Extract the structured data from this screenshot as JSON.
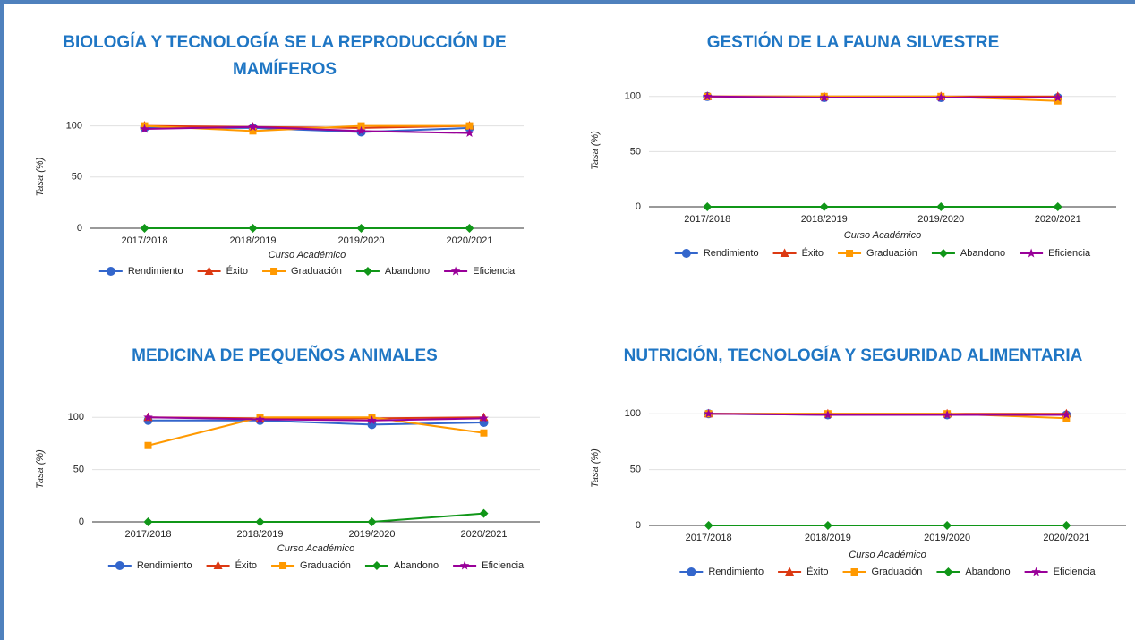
{
  "chart_data": [
    {
      "type": "line",
      "title": "BIOLOGÍA Y TECNOLOGÍA SE LA REPRODUCCIÓN DE MAMÍFEROS",
      "x_label": "Curso Académico",
      "y_label": "Tasa (%)",
      "categories": [
        "2017/2018",
        "2018/2019",
        "2019/2020",
        "2020/2021"
      ],
      "ylim": [
        0,
        125
      ],
      "yticks": [
        0,
        50,
        100
      ],
      "grid": true,
      "legend": "bottom",
      "series": [
        {
          "name": "Rendimiento",
          "color": "#3366cc",
          "marker": "circle",
          "values": [
            98,
            98,
            94,
            98
          ]
        },
        {
          "name": "Éxito",
          "color": "#dc3912",
          "marker": "triangle",
          "values": [
            100,
            99,
            98,
            100
          ]
        },
        {
          "name": "Graduación",
          "color": "#ff9900",
          "marker": "square",
          "values": [
            100,
            95,
            100,
            100
          ]
        },
        {
          "name": "Abandono",
          "color": "#109618",
          "marker": "diamond",
          "values": [
            0,
            0,
            0,
            0
          ]
        },
        {
          "name": "Eficiencia",
          "color": "#990099",
          "marker": "star",
          "values": [
            97,
            99,
            95,
            93
          ]
        }
      ]
    },
    {
      "type": "line",
      "title": "GESTIÓN DE LA FAUNA SILVESTRE",
      "x_label": "Curso Académico",
      "y_label": "Tasa (%)",
      "categories": [
        "2017/2018",
        "2018/2019",
        "2019/2020",
        "2020/2021"
      ],
      "ylim": [
        0,
        125
      ],
      "yticks": [
        0,
        50,
        100
      ],
      "grid": true,
      "legend": "bottom",
      "series": [
        {
          "name": "Rendimiento",
          "color": "#3366cc",
          "marker": "circle",
          "values": [
            100,
            99,
            99,
            99
          ]
        },
        {
          "name": "Éxito",
          "color": "#dc3912",
          "marker": "triangle",
          "values": [
            100,
            100,
            100,
            100
          ]
        },
        {
          "name": "Graduación",
          "color": "#ff9900",
          "marker": "square",
          "values": [
            100,
            100,
            100,
            96
          ]
        },
        {
          "name": "Abandono",
          "color": "#109618",
          "marker": "diamond",
          "values": [
            0,
            0,
            0,
            0
          ]
        },
        {
          "name": "Eficiencia",
          "color": "#990099",
          "marker": "star",
          "values": [
            100,
            99,
            99,
            99
          ]
        }
      ]
    },
    {
      "type": "line",
      "title": "MEDICINA DE PEQUEÑOS ANIMALES",
      "x_label": "Curso Académico",
      "y_label": "Tasa (%)",
      "categories": [
        "2017/2018",
        "2018/2019",
        "2019/2020",
        "2020/2021"
      ],
      "ylim": [
        0,
        125
      ],
      "yticks": [
        0,
        50,
        100
      ],
      "grid": true,
      "legend": "bottom",
      "series": [
        {
          "name": "Rendimiento",
          "color": "#3366cc",
          "marker": "circle",
          "values": [
            97,
            97,
            93,
            95
          ]
        },
        {
          "name": "Éxito",
          "color": "#dc3912",
          "marker": "triangle",
          "values": [
            100,
            99,
            99,
            100
          ]
        },
        {
          "name": "Graduación",
          "color": "#ff9900",
          "marker": "square",
          "values": [
            73,
            100,
            100,
            85
          ]
        },
        {
          "name": "Abandono",
          "color": "#109618",
          "marker": "diamond",
          "values": [
            0,
            0,
            0,
            8
          ]
        },
        {
          "name": "Eficiencia",
          "color": "#990099",
          "marker": "star",
          "values": [
            100,
            98,
            97,
            99
          ]
        }
      ]
    },
    {
      "type": "line",
      "title": "NUTRICIÓN, TECNOLOGÍA Y SEGURIDAD ALIMENTARIA",
      "x_label": "Curso Académico",
      "y_label": "Tasa (%)",
      "categories": [
        "2017/2018",
        "2018/2019",
        "2019/2020",
        "2020/2021"
      ],
      "ylim": [
        0,
        125
      ],
      "yticks": [
        0,
        50,
        100
      ],
      "grid": true,
      "legend": "bottom",
      "series": [
        {
          "name": "Rendimiento",
          "color": "#3366cc",
          "marker": "circle",
          "values": [
            100,
            99,
            99,
            99
          ]
        },
        {
          "name": "Éxito",
          "color": "#dc3912",
          "marker": "triangle",
          "values": [
            100,
            100,
            100,
            100
          ]
        },
        {
          "name": "Graduación",
          "color": "#ff9900",
          "marker": "square",
          "values": [
            100,
            100,
            100,
            96
          ]
        },
        {
          "name": "Abandono",
          "color": "#109618",
          "marker": "diamond",
          "values": [
            0,
            0,
            0,
            0
          ]
        },
        {
          "name": "Eficiencia",
          "color": "#990099",
          "marker": "star",
          "values": [
            100,
            99,
            99,
            99
          ]
        }
      ]
    }
  ]
}
